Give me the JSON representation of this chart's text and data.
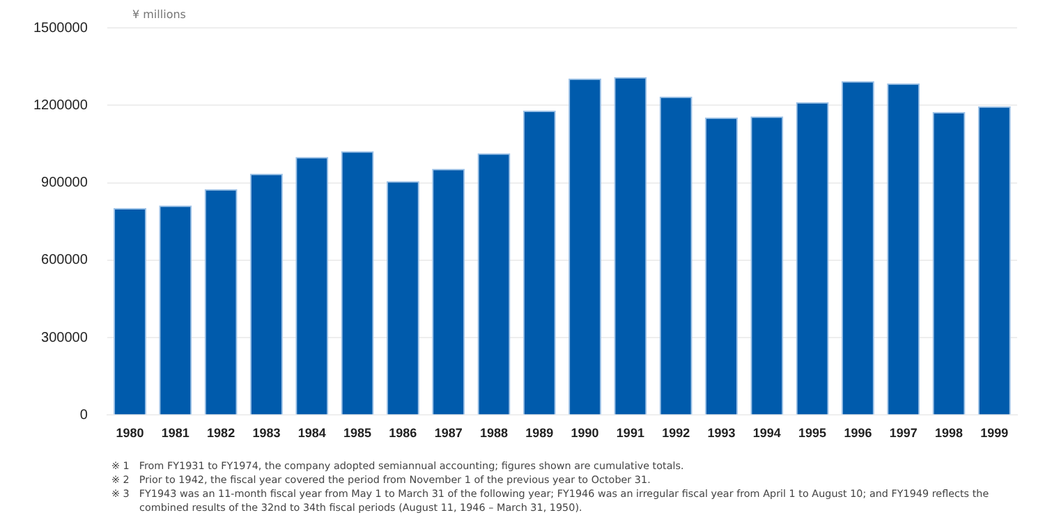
{
  "chart_data": {
    "type": "bar",
    "ylabel": "¥ millions",
    "categories": [
      "1980",
      "1981",
      "1982",
      "1983",
      "1984",
      "1985",
      "1986",
      "1987",
      "1988",
      "1989",
      "1990",
      "1991",
      "1992",
      "1993",
      "1994",
      "1995",
      "1996",
      "1997",
      "1998",
      "1999"
    ],
    "values": [
      802000,
      812000,
      875000,
      935000,
      1000000,
      1022000,
      906000,
      954000,
      1014000,
      1179000,
      1304000,
      1309000,
      1234000,
      1153000,
      1157000,
      1212000,
      1294000,
      1285000,
      1174000,
      1196000
    ],
    "color": "#005bac",
    "ylim": [
      0,
      1500000
    ],
    "yticks": [
      0,
      300000,
      600000,
      900000,
      1200000,
      1500000
    ],
    "grid": "y",
    "annotations": [
      "※ 1　From FY1931 to FY1974, the company adopted semiannual accounting; figures shown are cumulative totals.",
      "※ 2　Prior to 1942, the fiscal year covered the period from November 1 of the previous year to October 31.",
      "※ 3　FY1943 was an 11-month fiscal year from May 1 to March 31 of the following year; FY1946 was an irregular fiscal year from April 1 to August 10; and FY1949 reflects the combined results of the 32nd to 34th fiscal periods (August 11, 1946 – March 31, 1950)."
    ]
  }
}
